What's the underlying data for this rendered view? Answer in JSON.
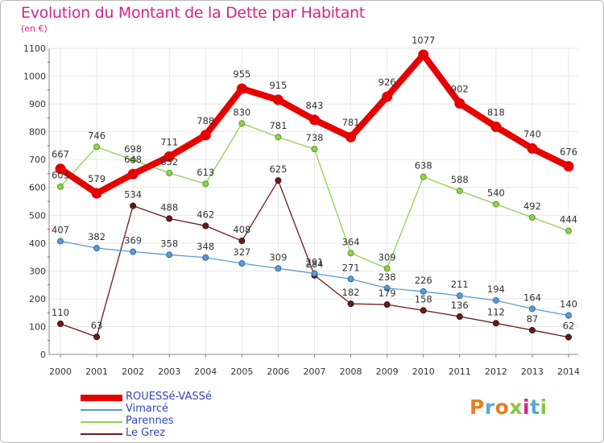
{
  "header": {
    "title": "Evolution du Montant de la Dette par Habitant",
    "subtitle": "(en €)"
  },
  "logo": {
    "text": "Proxiti",
    "colors": [
      "#e67e22",
      "#5aa9d6",
      "#e67e22",
      "#8dc63f",
      "#d4248a",
      "#5aa9d6",
      "#8dc63f"
    ]
  },
  "chart_data": {
    "type": "line",
    "title": "Evolution du Montant de la Dette par Habitant",
    "subtitle": "(en €)",
    "xlabel": "",
    "ylabel": "",
    "x": [
      2000,
      2001,
      2002,
      2003,
      2004,
      2005,
      2006,
      2007,
      2008,
      2009,
      2010,
      2011,
      2012,
      2013,
      2014
    ],
    "ylim": [
      0,
      1100
    ],
    "yticks": [
      0,
      100,
      200,
      300,
      400,
      500,
      600,
      700,
      800,
      900,
      1000,
      1100
    ],
    "grid": true,
    "legend_position": "bottom-left",
    "series": [
      {
        "name": "ROUESSé-VASSé",
        "color": "#e60000",
        "values": [
          667,
          579,
          648,
          711,
          788,
          955,
          915,
          843,
          781,
          926,
          1077,
          902,
          818,
          740,
          676
        ]
      },
      {
        "name": "Vimarcé",
        "color": "#5b9bd5",
        "values": [
          407,
          382,
          369,
          358,
          348,
          327,
          309,
          291,
          271,
          238,
          226,
          211,
          194,
          164,
          140
        ]
      },
      {
        "name": "Parennes",
        "color": "#92d050",
        "values": [
          603,
          746,
          698,
          652,
          613,
          830,
          781,
          738,
          364,
          309,
          638,
          588,
          540,
          492,
          444
        ]
      },
      {
        "name": "Le Grez",
        "color": "#6b1a1a",
        "values": [
          110,
          63,
          534,
          488,
          462,
          408,
          625,
          284,
          182,
          179,
          158,
          136,
          112,
          87,
          62
        ]
      }
    ]
  }
}
